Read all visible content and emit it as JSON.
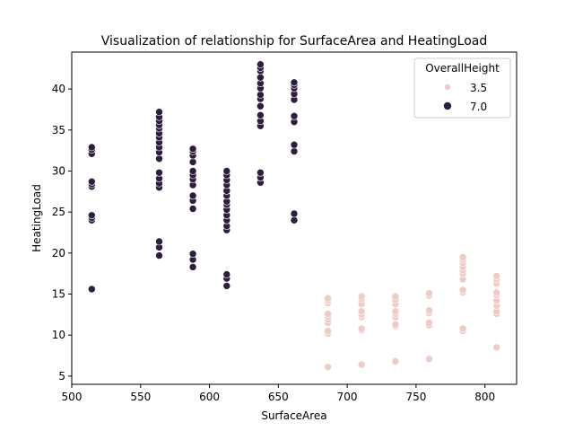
{
  "chart_data": {
    "type": "scatter",
    "title": "Visualization of relationship for SurfaceArea and HeatingLoad",
    "xlabel": "SurfaceArea",
    "ylabel": "HeatingLoad",
    "xlim": [
      500,
      823
    ],
    "ylim": [
      4.0,
      44.5
    ],
    "xticks": [
      500,
      550,
      600,
      650,
      700,
      750,
      800
    ],
    "yticks": [
      5,
      10,
      15,
      20,
      25,
      30,
      35,
      40
    ],
    "grid": false,
    "legend": {
      "title": "OverallHeight",
      "placement": "top-right",
      "entries": [
        {
          "label": "3.5",
          "color": "#eecbc5"
        },
        {
          "label": "7.0",
          "color": "#2d1e3e"
        }
      ]
    },
    "series": [
      {
        "name": "3.5",
        "color": "#eecbc5",
        "points": [
          [
            686,
            6.1
          ],
          [
            686,
            10.2
          ],
          [
            686,
            10.5
          ],
          [
            686,
            11.5
          ],
          [
            686,
            11.9
          ],
          [
            686,
            12.3
          ],
          [
            686,
            12.6
          ],
          [
            686,
            13.9
          ],
          [
            686,
            14.2
          ],
          [
            686,
            14.5
          ],
          [
            710.5,
            6.4
          ],
          [
            710.5,
            10.6
          ],
          [
            710.5,
            10.8
          ],
          [
            710.5,
            12.2
          ],
          [
            710.5,
            12.5
          ],
          [
            710.5,
            12.9
          ],
          [
            710.5,
            13.8
          ],
          [
            710.5,
            14.4
          ],
          [
            710.5,
            14.7
          ],
          [
            735,
            6.8
          ],
          [
            735,
            11.1
          ],
          [
            735,
            11.3
          ],
          [
            735,
            12.2
          ],
          [
            735,
            12.6
          ],
          [
            735,
            12.9
          ],
          [
            735,
            13.8
          ],
          [
            735,
            14.3
          ],
          [
            735,
            14.7
          ],
          [
            759.5,
            7.1
          ],
          [
            759.5,
            11.2
          ],
          [
            759.5,
            11.5
          ],
          [
            759.5,
            12.7
          ],
          [
            759.5,
            13.0
          ],
          [
            759.5,
            14.8
          ],
          [
            759.5,
            15.1
          ],
          [
            784,
            10.5
          ],
          [
            784,
            10.8
          ],
          [
            784,
            15.2
          ],
          [
            784,
            15.5
          ],
          [
            784,
            16.8
          ],
          [
            784,
            17.5
          ],
          [
            784,
            17.9
          ],
          [
            784,
            18.3
          ],
          [
            784,
            18.8
          ],
          [
            784,
            19.2
          ],
          [
            784,
            19.5
          ],
          [
            808.5,
            8.5
          ],
          [
            808.5,
            12.6
          ],
          [
            808.5,
            12.9
          ],
          [
            808.5,
            13.6
          ],
          [
            808.5,
            14.2
          ],
          [
            808.5,
            14.9
          ],
          [
            808.5,
            15.2
          ],
          [
            808.5,
            16.3
          ],
          [
            808.5,
            16.8
          ],
          [
            808.5,
            17.2
          ]
        ]
      },
      {
        "name": "7.0",
        "color": "#2d1e3e",
        "points": [
          [
            514.5,
            15.6
          ],
          [
            514.5,
            24.0
          ],
          [
            514.5,
            24.3
          ],
          [
            514.5,
            24.6
          ],
          [
            514.5,
            28.1
          ],
          [
            514.5,
            28.4
          ],
          [
            514.5,
            28.7
          ],
          [
            514.5,
            32.1
          ],
          [
            514.5,
            32.6
          ],
          [
            514.5,
            32.9
          ],
          [
            563.5,
            19.7
          ],
          [
            563.5,
            20.7
          ],
          [
            563.5,
            21.4
          ],
          [
            563.5,
            28.0
          ],
          [
            563.5,
            28.5
          ],
          [
            563.5,
            29.1
          ],
          [
            563.5,
            29.8
          ],
          [
            563.5,
            31.5
          ],
          [
            563.5,
            32.3
          ],
          [
            563.5,
            32.9
          ],
          [
            563.5,
            33.5
          ],
          [
            563.5,
            34.1
          ],
          [
            563.5,
            34.6
          ],
          [
            563.5,
            35.2
          ],
          [
            563.5,
            35.6
          ],
          [
            563.5,
            36.1
          ],
          [
            563.5,
            36.6
          ],
          [
            563.5,
            37.2
          ],
          [
            588,
            18.3
          ],
          [
            588,
            19.2
          ],
          [
            588,
            19.9
          ],
          [
            588,
            25.4
          ],
          [
            588,
            26.4
          ],
          [
            588,
            27.0
          ],
          [
            588,
            28.3
          ],
          [
            588,
            29.0
          ],
          [
            588,
            29.5
          ],
          [
            588,
            30.0
          ],
          [
            588,
            31.1
          ],
          [
            588,
            31.9
          ],
          [
            588,
            32.4
          ],
          [
            588,
            32.7
          ],
          [
            612.5,
            16.0
          ],
          [
            612.5,
            16.9
          ],
          [
            612.5,
            17.4
          ],
          [
            612.5,
            22.8
          ],
          [
            612.5,
            23.3
          ],
          [
            612.5,
            24.0
          ],
          [
            612.5,
            24.6
          ],
          [
            612.5,
            25.3
          ],
          [
            612.5,
            25.9
          ],
          [
            612.5,
            26.3
          ],
          [
            612.5,
            27.0
          ],
          [
            612.5,
            27.6
          ],
          [
            612.5,
            28.3
          ],
          [
            612.5,
            28.9
          ],
          [
            612.5,
            29.5
          ],
          [
            612.5,
            30.0
          ],
          [
            637,
            28.6
          ],
          [
            637,
            29.2
          ],
          [
            637,
            29.8
          ],
          [
            637,
            35.5
          ],
          [
            637,
            36.1
          ],
          [
            637,
            36.8
          ],
          [
            637,
            37.9
          ],
          [
            637,
            38.8
          ],
          [
            637,
            39.3
          ],
          [
            637,
            40.1
          ],
          [
            637,
            40.7
          ],
          [
            637,
            41.4
          ],
          [
            637,
            42.2
          ],
          [
            637,
            42.6
          ],
          [
            637,
            43.0
          ],
          [
            661.5,
            24.0
          ],
          [
            661.5,
            24.8
          ],
          [
            661.5,
            32.4
          ],
          [
            661.5,
            33.2
          ],
          [
            661.5,
            36.0
          ],
          [
            661.5,
            36.7
          ],
          [
            661.5,
            38.7
          ],
          [
            661.5,
            39.4
          ],
          [
            661.5,
            40.1
          ],
          [
            661.5,
            40.5
          ],
          [
            661.5,
            40.8
          ]
        ]
      }
    ]
  }
}
